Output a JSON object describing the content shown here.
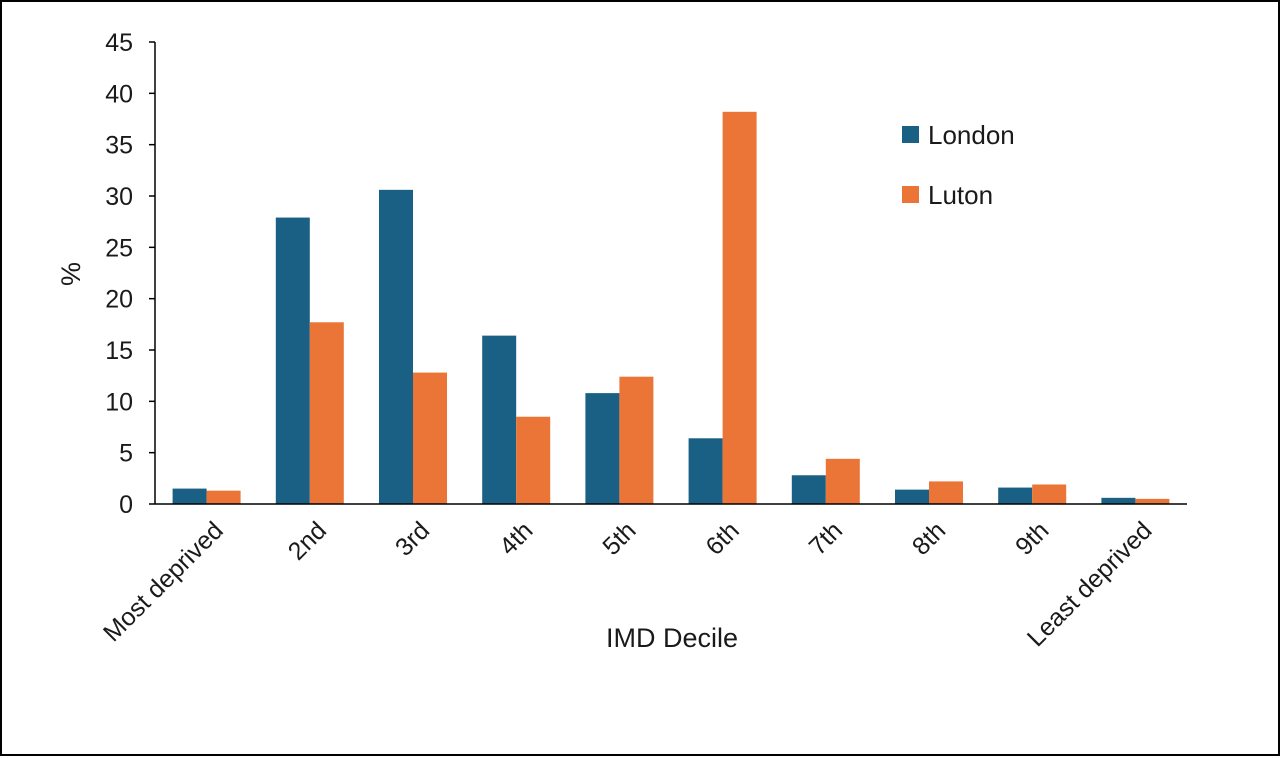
{
  "chart_data": {
    "type": "bar",
    "title": "",
    "xlabel": "IMD Decile",
    "ylabel": "%",
    "ylim": [
      0,
      45
    ],
    "yticks": [
      0,
      5,
      10,
      15,
      20,
      25,
      30,
      35,
      40,
      45
    ],
    "grid": false,
    "legend_position": "top-right",
    "categories": [
      "Most deprived",
      "2nd",
      "3rd",
      "4th",
      "5th",
      "6th",
      "7th",
      "8th",
      "9th",
      "Least deprived"
    ],
    "series": [
      {
        "name": "London",
        "color": "#1a5f84",
        "values": [
          1.5,
          27.9,
          30.6,
          16.4,
          10.8,
          6.4,
          2.8,
          1.4,
          1.6,
          0.6
        ]
      },
      {
        "name": "Luton",
        "color": "#ea7536",
        "values": [
          1.3,
          17.7,
          12.8,
          8.5,
          12.4,
          38.2,
          4.4,
          2.2,
          1.9,
          0.5
        ]
      }
    ]
  }
}
